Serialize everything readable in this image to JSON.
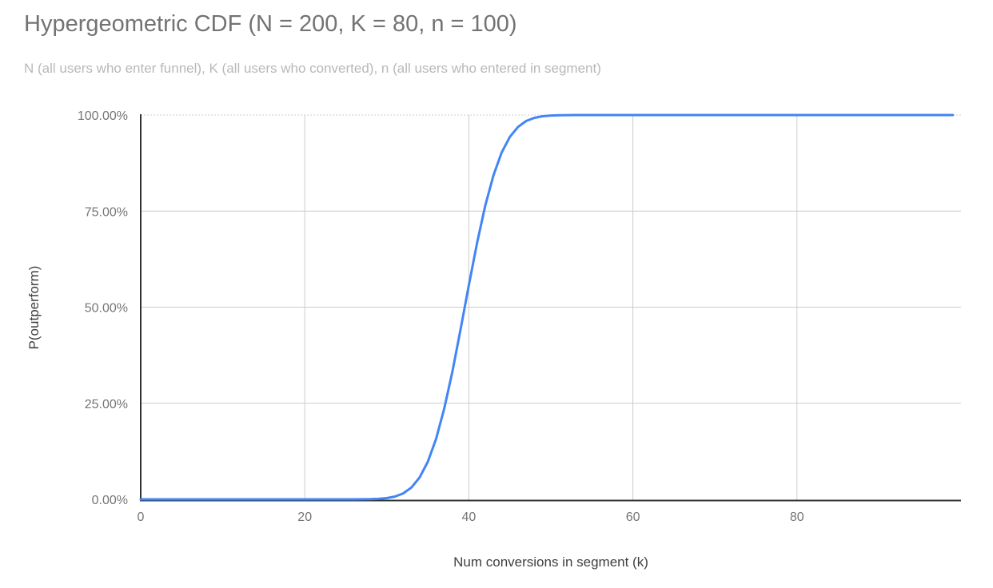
{
  "chart_data": {
    "type": "line",
    "title": "Hypergeometric CDF (N = 200, K = 80, n = 100)",
    "subtitle": "N (all users who enter funnel), K (all users who converted), n (all users who entered in segment)",
    "xlabel": "Num conversions in segment (k)",
    "ylabel": "P(outperform)",
    "xlim": [
      0,
      100
    ],
    "ylim": [
      0,
      1
    ],
    "x_ticks": [
      0,
      20,
      40,
      60,
      80
    ],
    "x_tick_labels": [
      "0",
      "20",
      "40",
      "60",
      "80"
    ],
    "y_ticks": [
      0,
      0.25,
      0.5,
      0.75,
      1
    ],
    "y_tick_labels": [
      "0.00%",
      "25.00%",
      "50.00%",
      "75.00%",
      "100.00%"
    ],
    "grid": true,
    "legend_position": "none",
    "series": [
      {
        "name": "P(outperform)",
        "x": [
          0,
          1,
          2,
          3,
          4,
          5,
          6,
          7,
          8,
          9,
          10,
          11,
          12,
          13,
          14,
          15,
          16,
          17,
          18,
          19,
          20,
          21,
          22,
          23,
          24,
          25,
          26,
          27,
          28,
          29,
          30,
          31,
          32,
          33,
          34,
          35,
          36,
          37,
          38,
          39,
          40,
          41,
          42,
          43,
          44,
          45,
          46,
          47,
          48,
          49,
          50,
          51,
          52,
          53,
          54,
          55,
          56,
          57,
          58,
          59,
          60,
          61,
          62,
          63,
          64,
          65,
          66,
          67,
          68,
          69,
          70,
          71,
          72,
          73,
          74,
          75,
          76,
          77,
          78,
          79,
          80,
          81,
          82,
          83,
          84,
          85,
          86,
          87,
          88,
          89,
          90,
          91,
          92,
          93,
          94,
          95,
          96,
          97,
          98,
          99
        ],
        "y": [
          0,
          0,
          0,
          0,
          0,
          0,
          0,
          0,
          0,
          0,
          0,
          0,
          0,
          0,
          0,
          0,
          0,
          0,
          0,
          0,
          0,
          0,
          0,
          0,
          0,
          1e-05,
          5e-05,
          0.00016,
          0.00046,
          0.00125,
          0.0031,
          0.0072,
          0.0154,
          0.0307,
          0.0567,
          0.0977,
          0.1569,
          0.236,
          0.3329,
          0.4428,
          0.5572,
          0.6671,
          0.764,
          0.8431,
          0.9023,
          0.9433,
          0.9693,
          0.9846,
          0.9928,
          0.9969,
          0.9987,
          0.9995,
          0.9998,
          0.99995,
          1,
          1,
          1,
          1,
          1,
          1,
          1,
          1,
          1,
          1,
          1,
          1,
          1,
          1,
          1,
          1,
          1,
          1,
          1,
          1,
          1,
          1,
          1,
          1,
          1,
          1,
          1,
          1,
          1,
          1,
          1,
          1,
          1,
          1,
          1,
          1,
          1,
          1,
          1,
          1,
          1,
          1,
          1,
          1,
          1,
          1
        ]
      }
    ]
  },
  "colors": {
    "line": "#4285f4",
    "title_text": "#737373",
    "subtitle_text": "#b8b8b8",
    "tick_label": "#757575",
    "axis_title": "#404040",
    "gridline": "#cccccc",
    "axis_line": "#333333"
  }
}
